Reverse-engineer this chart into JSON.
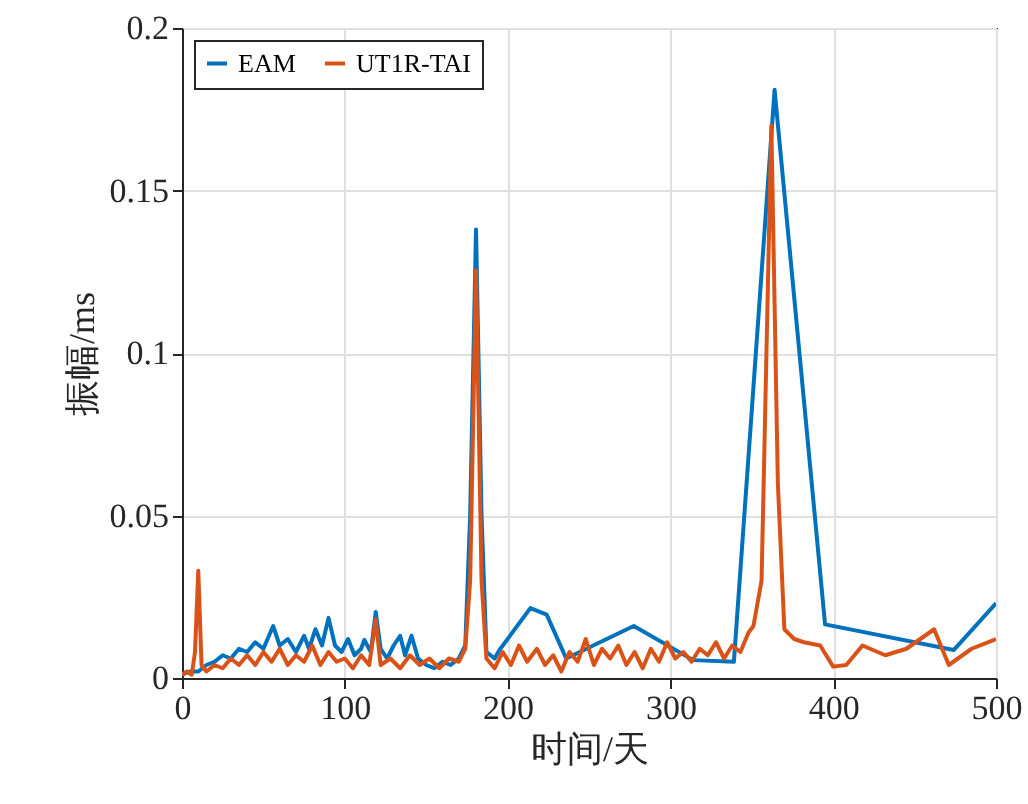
{
  "chart_data": {
    "type": "line",
    "xlabel": "时间/天",
    "ylabel": "振幅/ms",
    "xlim": [
      0,
      500
    ],
    "ylim": [
      0,
      0.2
    ],
    "xticks": [
      0,
      100,
      200,
      300,
      400,
      500
    ],
    "yticks": [
      0,
      0.05,
      0.1,
      0.15,
      0.2
    ],
    "grid": true,
    "legend": "top left",
    "series": [
      {
        "name": "EAM",
        "color": "#0072bd",
        "x": [
          0,
          5,
          10,
          15,
          20,
          25,
          30,
          35,
          40,
          45,
          50,
          56,
          60,
          65,
          70,
          75,
          78,
          82,
          86,
          90,
          94,
          98,
          102,
          106,
          110,
          112,
          116,
          119,
          122,
          126,
          130,
          134,
          137,
          141,
          145,
          150,
          155,
          160,
          165,
          170,
          174,
          177,
          180.6,
          184,
          187,
          192,
          195,
          214,
          224,
          236,
          277.5,
          314,
          339,
          364,
          395,
          474,
          500
        ],
        "values": [
          0.001,
          0.002,
          0.002,
          0.004,
          0.005,
          0.007,
          0.006,
          0.009,
          0.008,
          0.011,
          0.009,
          0.016,
          0.01,
          0.012,
          0.008,
          0.013,
          0.009,
          0.015,
          0.01,
          0.0185,
          0.01,
          0.008,
          0.012,
          0.007,
          0.009,
          0.0117,
          0.008,
          0.0203,
          0.009,
          0.006,
          0.01,
          0.013,
          0.007,
          0.013,
          0.006,
          0.004,
          0.003,
          0.005,
          0.004,
          0.006,
          0.01,
          0.05,
          0.138,
          0.05,
          0.008,
          0.006,
          0.0086,
          0.0215,
          0.0195,
          0.006,
          0.016,
          0.0055,
          0.005,
          0.181,
          0.0165,
          0.0086,
          0.023
        ]
      },
      {
        "name": "UT1R-TAI",
        "color": "#d95319",
        "x": [
          0,
          3,
          6,
          8,
          10,
          12,
          15,
          20,
          25,
          30,
          35,
          40,
          45,
          50,
          55,
          60,
          65,
          70,
          75,
          80,
          85,
          90,
          95,
          100,
          105,
          110,
          115,
          119,
          122,
          128,
          134,
          140,
          146,
          152,
          158,
          164,
          170,
          174,
          177,
          180.6,
          184,
          187,
          192,
          197,
          202,
          207,
          212,
          218,
          223,
          228,
          233,
          238,
          243,
          248,
          253,
          258,
          263,
          268,
          273,
          278,
          283,
          288,
          293,
          298,
          303,
          308,
          313,
          318,
          323,
          328,
          333,
          338,
          343,
          348,
          351,
          356,
          362,
          366,
          370,
          376,
          382,
          392,
          400,
          408,
          418,
          432,
          445,
          462,
          471,
          485,
          500
        ],
        "values": [
          0.001,
          0.002,
          0.001,
          0.008,
          0.033,
          0.004,
          0.002,
          0.004,
          0.003,
          0.006,
          0.004,
          0.007,
          0.004,
          0.008,
          0.005,
          0.009,
          0.004,
          0.007,
          0.005,
          0.01,
          0.004,
          0.008,
          0.005,
          0.006,
          0.003,
          0.007,
          0.004,
          0.018,
          0.004,
          0.006,
          0.003,
          0.007,
          0.004,
          0.006,
          0.003,
          0.006,
          0.005,
          0.009,
          0.03,
          0.1255,
          0.03,
          0.006,
          0.003,
          0.008,
          0.004,
          0.01,
          0.005,
          0.009,
          0.004,
          0.007,
          0.002,
          0.008,
          0.005,
          0.012,
          0.004,
          0.009,
          0.006,
          0.01,
          0.004,
          0.008,
          0.003,
          0.009,
          0.005,
          0.011,
          0.006,
          0.008,
          0.005,
          0.009,
          0.007,
          0.011,
          0.006,
          0.01,
          0.008,
          0.014,
          0.016,
          0.03,
          0.17,
          0.06,
          0.015,
          0.012,
          0.011,
          0.01,
          0.0035,
          0.004,
          0.01,
          0.007,
          0.009,
          0.015,
          0.004,
          0.009,
          0.012
        ]
      }
    ]
  }
}
